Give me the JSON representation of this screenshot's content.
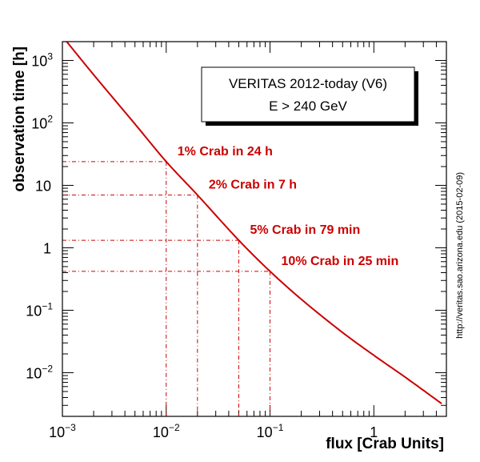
{
  "chart_data": {
    "type": "line",
    "title": "",
    "infobox": {
      "line1": "VERITAS 2012-today (V6)",
      "line2": "E > 240 GeV"
    },
    "xlabel": "flux [Crab Units]",
    "ylabel": "observation time [h]",
    "xscale": "log",
    "yscale": "log",
    "xlim": [
      0.001,
      5
    ],
    "ylim": [
      0.002,
      2000
    ],
    "grid": false,
    "x_ticks": [
      {
        "value": 0.001,
        "base": "10",
        "exp": "−3"
      },
      {
        "value": 0.01,
        "base": "10",
        "exp": "−2"
      },
      {
        "value": 0.1,
        "base": "10",
        "exp": "−1"
      },
      {
        "value": 1,
        "base": "1",
        "exp": ""
      }
    ],
    "y_ticks": [
      {
        "value": 0.01,
        "base": "10",
        "exp": "−2"
      },
      {
        "value": 0.1,
        "base": "10",
        "exp": "−1"
      },
      {
        "value": 1,
        "base": "1",
        "exp": ""
      },
      {
        "value": 10,
        "base": "10",
        "exp": ""
      },
      {
        "value": 100,
        "base": "10",
        "exp": "2"
      },
      {
        "value": 1000,
        "base": "10",
        "exp": "3"
      }
    ],
    "series": [
      {
        "color": "#cc0000",
        "x": [
          0.0011,
          0.002,
          0.005,
          0.01,
          0.02,
          0.05,
          0.1,
          0.2,
          0.5,
          1,
          2,
          4.5
        ],
        "y": [
          2000,
          590,
          96,
          24,
          7,
          1.32,
          0.42,
          0.15,
          0.044,
          0.019,
          0.0085,
          0.0032
        ]
      }
    ],
    "annotations": [
      {
        "text": "1% Crab in 24 h",
        "x": 0.01,
        "y": 24
      },
      {
        "text": "2% Crab in 7 h",
        "x": 0.02,
        "y": 7
      },
      {
        "text": "5% Crab in 79 min",
        "x": 0.05,
        "y": 1.32
      },
      {
        "text": "10% Crab in 25 min",
        "x": 0.1,
        "y": 0.42
      }
    ],
    "side_note": "http://veritas.sao.arizona.edu (2015-02-09)"
  }
}
